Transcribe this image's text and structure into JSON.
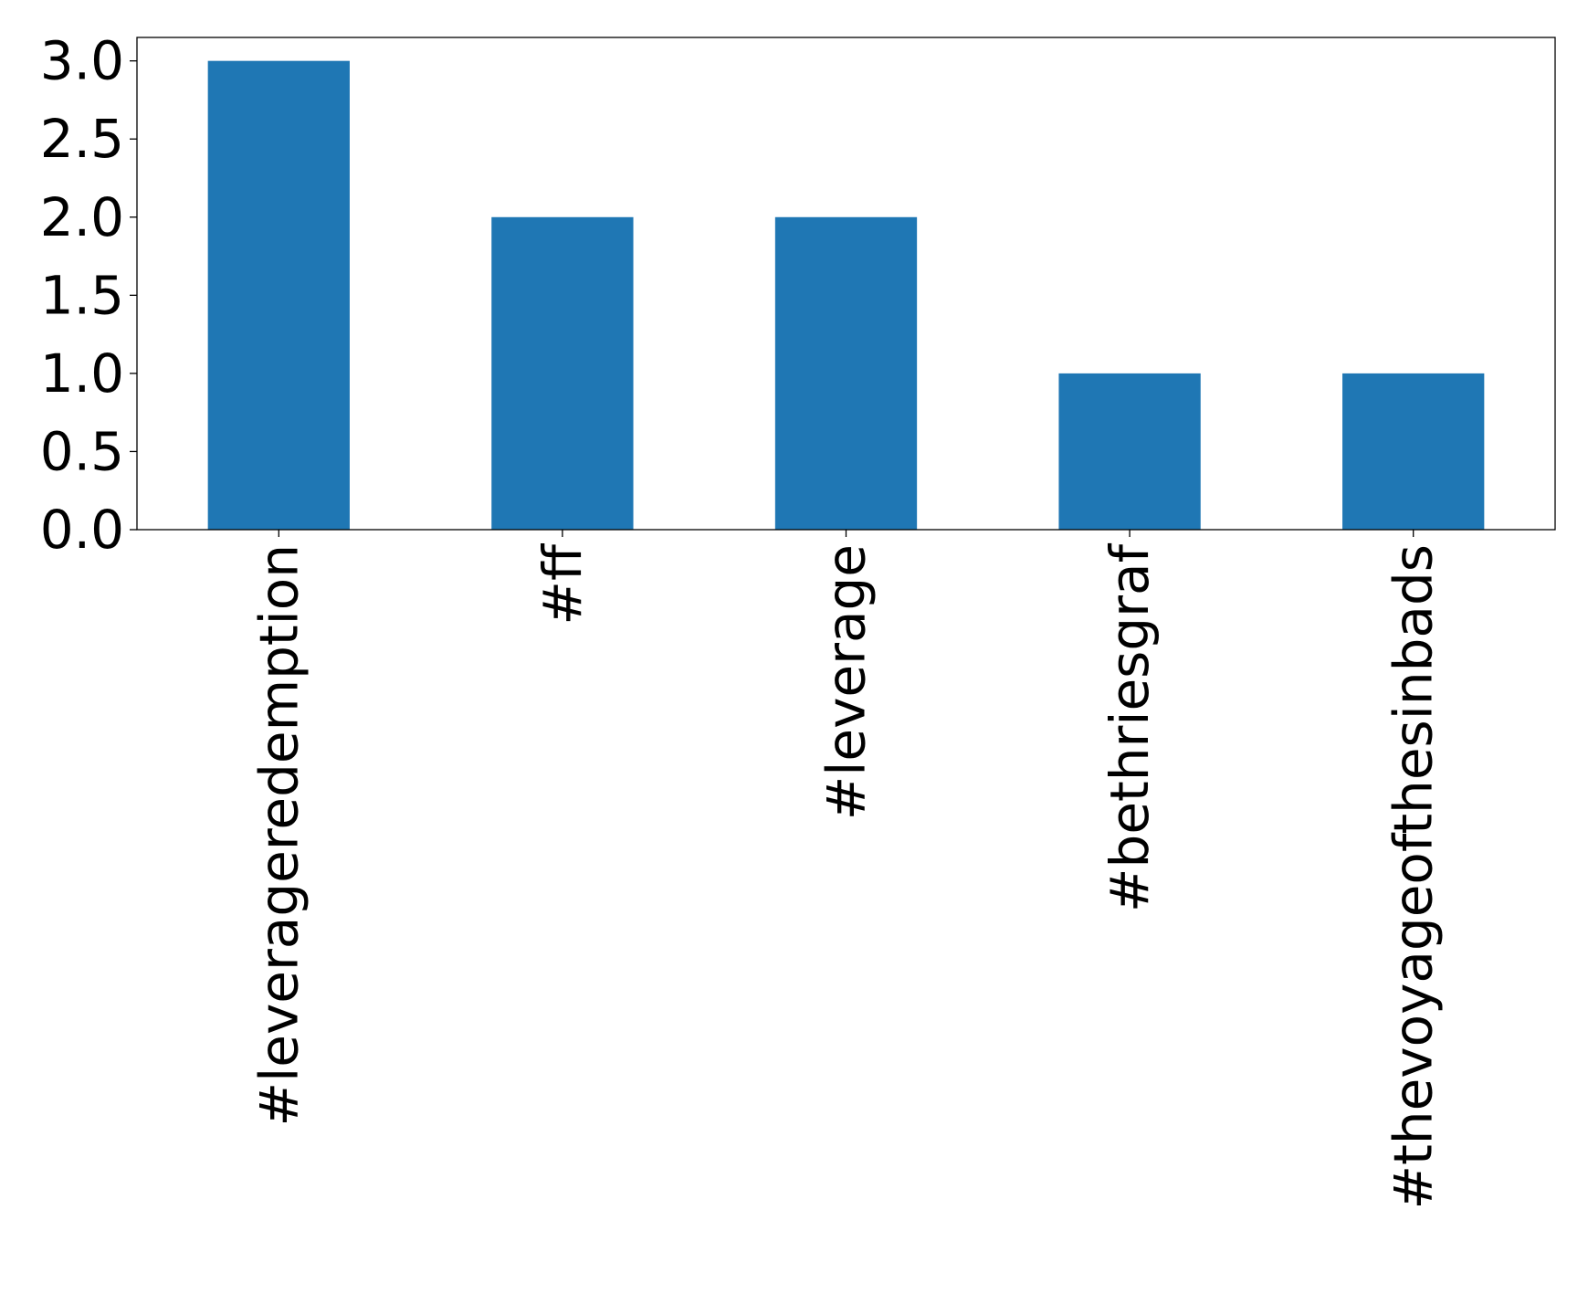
{
  "chart_data": {
    "type": "bar",
    "categories": [
      "#leverageredemption",
      "#ff",
      "#leverage",
      "#bethriesgraf",
      "#thevoyageofthesinbads"
    ],
    "values": [
      3,
      2,
      2,
      1,
      1
    ],
    "title": "",
    "xlabel": "",
    "ylabel": "",
    "ylim": [
      0,
      3.15
    ],
    "yticks": [
      "0.0",
      "0.5",
      "1.0",
      "1.5",
      "2.0",
      "2.5",
      "3.0"
    ],
    "grid": false,
    "legend": "none",
    "colors": {
      "bar": "#1f77b4",
      "axis": "#000000"
    }
  }
}
